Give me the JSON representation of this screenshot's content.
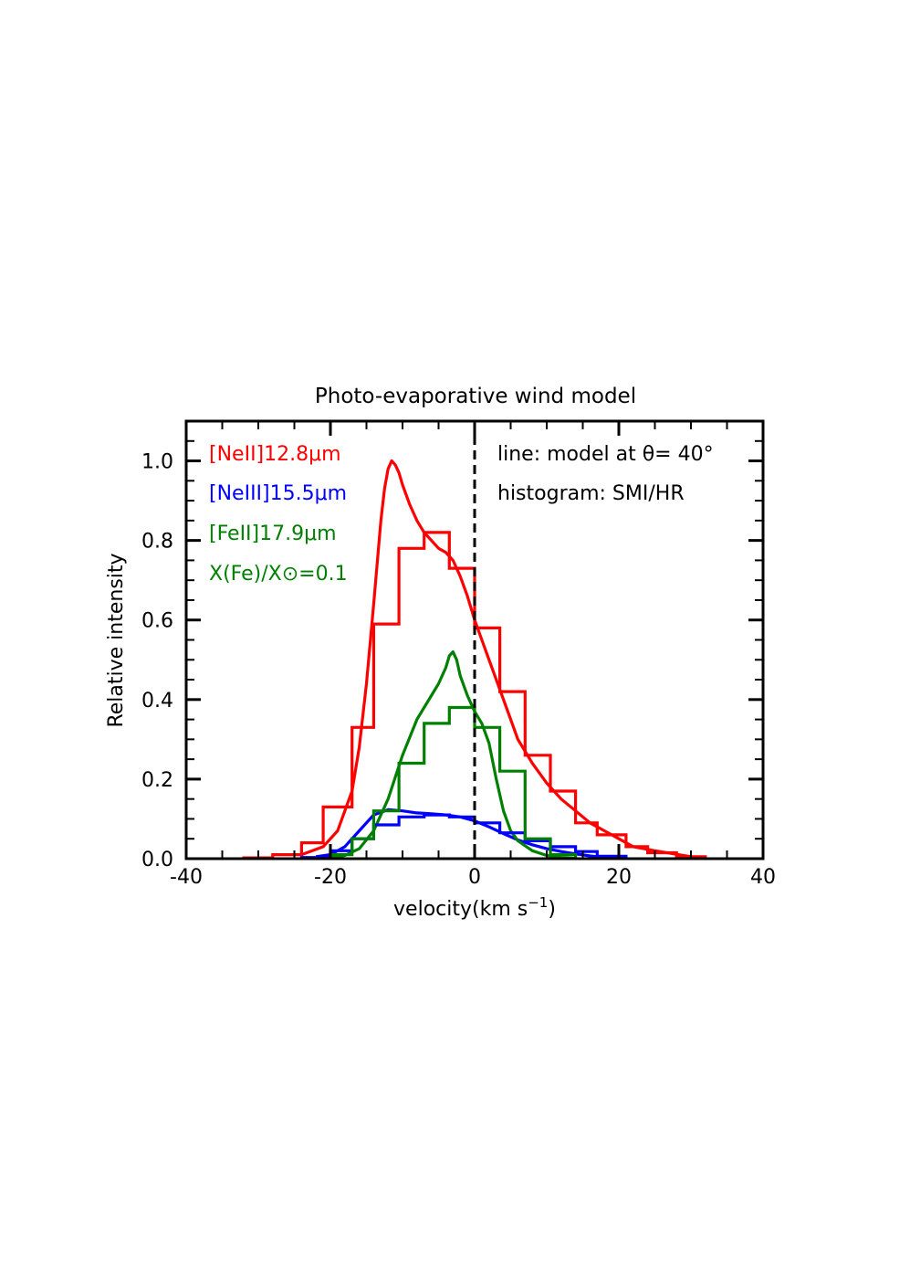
{
  "chart_data": {
    "type": "line",
    "title": "Photo-evaporative wind model",
    "xlabel": "velocity(km s",
    "xlabel_sup": "−1",
    "xlabel_tail": ")",
    "ylabel": "Relative intensity",
    "xlim": [
      -40,
      40
    ],
    "ylim": [
      0,
      1.1
    ],
    "xticks": [
      -40,
      -20,
      0,
      20,
      40
    ],
    "xtick_labels": [
      "-40",
      "-20",
      "0",
      "20",
      "40"
    ],
    "yticks": [
      0.0,
      0.2,
      0.4,
      0.6,
      0.8,
      1.0
    ],
    "ytick_labels": [
      "0.0",
      "0.2",
      "0.4",
      "0.6",
      "0.8",
      "1.0"
    ],
    "grid": false,
    "vline": {
      "x": 0,
      "style": "dashed",
      "color": "#000000"
    },
    "legend": [
      {
        "text": "[NeII]12.8μm",
        "color": "#ff0000"
      },
      {
        "text": "[NeIII]15.5μm",
        "color": "#0000ff"
      },
      {
        "text": "[FeII]17.9μm",
        "color": "#008000"
      },
      {
        "text": "X(Fe)/X⊙=0.1",
        "color": "#008000"
      }
    ],
    "annotations": [
      {
        "text": "line: model at θ= 40°"
      },
      {
        "text": "histogram: SMI/HR"
      }
    ],
    "series": [
      {
        "name": "[NeII]12.8μm",
        "kind": "line",
        "color": "#ff0000",
        "x": [
          -24,
          -21,
          -19,
          -17,
          -16,
          -15,
          -14,
          -13,
          -12.5,
          -12,
          -11.5,
          -11,
          -10.5,
          -10,
          -9,
          -8,
          -7,
          -6,
          -5,
          -4,
          -3,
          -2,
          -1,
          0,
          1,
          2,
          3,
          4,
          5,
          6,
          8,
          10,
          12,
          14,
          16,
          18,
          20,
          22,
          25,
          30
        ],
        "y": [
          0.01,
          0.03,
          0.07,
          0.17,
          0.28,
          0.44,
          0.64,
          0.85,
          0.93,
          0.98,
          1.0,
          0.99,
          0.97,
          0.94,
          0.89,
          0.85,
          0.82,
          0.8,
          0.78,
          0.77,
          0.75,
          0.71,
          0.66,
          0.6,
          0.55,
          0.5,
          0.45,
          0.4,
          0.35,
          0.3,
          0.24,
          0.19,
          0.15,
          0.12,
          0.09,
          0.07,
          0.05,
          0.03,
          0.02,
          0.005
        ]
      },
      {
        "name": "[NeIII]15.5μm",
        "kind": "line",
        "color": "#0000ff",
        "x": [
          -22,
          -20,
          -18,
          -16,
          -14,
          -12,
          -10,
          -8,
          -6,
          -4,
          -2,
          0,
          2,
          4,
          6,
          8,
          10,
          12,
          14,
          16,
          18
        ],
        "y": [
          0.005,
          0.01,
          0.03,
          0.07,
          0.11,
          0.123,
          0.12,
          0.115,
          0.113,
          0.11,
          0.105,
          0.095,
          0.08,
          0.063,
          0.047,
          0.035,
          0.025,
          0.018,
          0.012,
          0.007,
          0.003
        ]
      },
      {
        "name": "[FeII]17.9μm",
        "kind": "line",
        "color": "#008000",
        "x": [
          -20,
          -18,
          -16,
          -14,
          -12,
          -10,
          -8,
          -6,
          -5,
          -4,
          -3.5,
          -3,
          -2.5,
          -2,
          -1,
          0,
          1,
          2,
          3,
          4,
          5,
          6,
          8,
          10,
          12,
          14
        ],
        "y": [
          0.003,
          0.008,
          0.025,
          0.07,
          0.15,
          0.26,
          0.35,
          0.41,
          0.44,
          0.48,
          0.51,
          0.52,
          0.5,
          0.46,
          0.41,
          0.37,
          0.34,
          0.29,
          0.2,
          0.12,
          0.07,
          0.045,
          0.02,
          0.008,
          0.003,
          0.001
        ]
      },
      {
        "name": "[NeII]12.8μm",
        "kind": "step",
        "color": "#ff0000",
        "edges": [
          -32,
          -28,
          -24,
          -21,
          -17,
          -14,
          -10.5,
          -7,
          -3.5,
          0,
          3.5,
          7,
          10.5,
          14,
          17,
          21,
          24,
          28,
          32
        ],
        "values": [
          0.002,
          0.01,
          0.04,
          0.13,
          0.33,
          0.59,
          0.78,
          0.82,
          0.73,
          0.58,
          0.42,
          0.26,
          0.17,
          0.09,
          0.06,
          0.03,
          0.015,
          0.005
        ]
      },
      {
        "name": "[NeIII]15.5μm",
        "kind": "step",
        "color": "#0000ff",
        "edges": [
          -24,
          -20,
          -17,
          -14,
          -10.5,
          -7,
          -3.5,
          0,
          3.5,
          7,
          10.5,
          14,
          17,
          21
        ],
        "values": [
          0.003,
          0.02,
          0.05,
          0.085,
          0.105,
          0.11,
          0.105,
          0.09,
          0.065,
          0.045,
          0.03,
          0.018,
          0.006
        ]
      },
      {
        "name": "[FeII]17.9μm",
        "kind": "step",
        "color": "#008000",
        "edges": [
          -20,
          -17,
          -14,
          -10.5,
          -7,
          -3.5,
          0,
          3.5,
          7,
          10.5,
          14
        ],
        "values": [
          0.01,
          0.05,
          0.12,
          0.24,
          0.34,
          0.38,
          0.33,
          0.22,
          0.05,
          0.01
        ]
      }
    ]
  }
}
